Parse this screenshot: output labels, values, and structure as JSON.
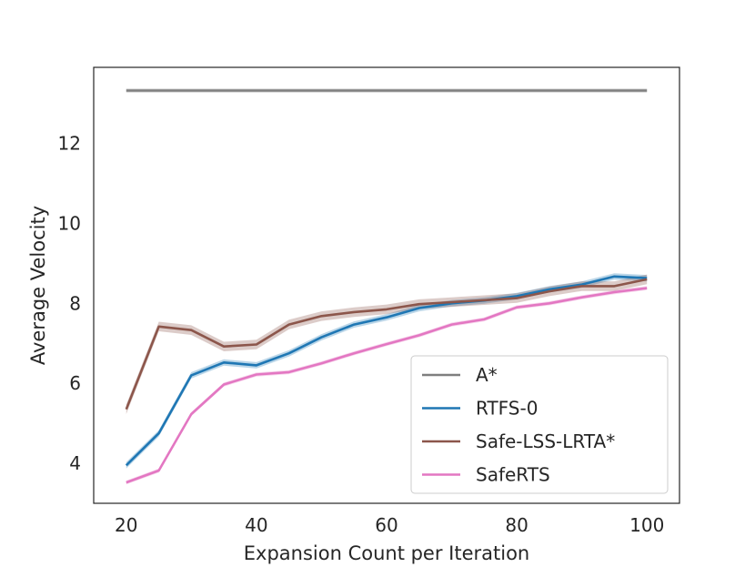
{
  "chart_data": {
    "type": "line",
    "xlabel": "Expansion Count per Iteration",
    "ylabel": "Average Velocity",
    "xlim": [
      15,
      105
    ],
    "ylim": [
      3.0,
      13.9
    ],
    "xticks": [
      20,
      40,
      60,
      80,
      100
    ],
    "yticks": [
      4,
      6,
      8,
      10,
      12
    ],
    "grid": false,
    "legend_position": "lower-right",
    "x": [
      20,
      25,
      30,
      35,
      40,
      45,
      50,
      55,
      60,
      65,
      70,
      75,
      80,
      85,
      90,
      95,
      100
    ],
    "series": [
      {
        "name": "A*",
        "color": "#7f7f7f",
        "band": 0.05,
        "values": [
          13.32,
          13.32,
          13.32,
          13.32,
          13.32,
          13.32,
          13.32,
          13.32,
          13.32,
          13.32,
          13.32,
          13.32,
          13.32,
          13.32,
          13.32,
          13.32,
          13.32
        ]
      },
      {
        "name": "RTFS-0",
        "color": "#1f77b4",
        "band": 0.08,
        "values": [
          3.95,
          4.75,
          6.2,
          6.52,
          6.45,
          6.75,
          7.15,
          7.47,
          7.65,
          7.88,
          8.0,
          8.07,
          8.18,
          8.35,
          8.47,
          8.67,
          8.63
        ]
      },
      {
        "name": "Safe-LSS-LRTA*",
        "color": "#8c564b",
        "band": 0.12,
        "values": [
          5.35,
          7.42,
          7.33,
          6.92,
          6.97,
          7.47,
          7.68,
          7.78,
          7.85,
          7.98,
          8.03,
          8.08,
          8.13,
          8.3,
          8.43,
          8.43,
          8.6
        ]
      },
      {
        "name": "SafeRTS",
        "color": "#e377c2",
        "band": 0.05,
        "values": [
          3.52,
          3.82,
          5.23,
          5.97,
          6.22,
          6.28,
          6.5,
          6.75,
          6.98,
          7.2,
          7.47,
          7.6,
          7.9,
          8.0,
          8.15,
          8.28,
          8.38
        ]
      }
    ]
  }
}
